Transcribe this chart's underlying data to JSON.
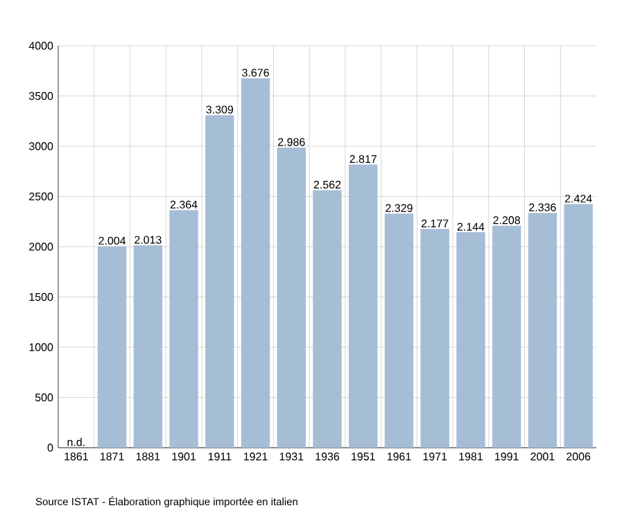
{
  "chart_data": {
    "type": "bar",
    "categories": [
      "1861",
      "1871",
      "1881",
      "1901",
      "1911",
      "1921",
      "1931",
      "1936",
      "1951",
      "1961",
      "1971",
      "1981",
      "1991",
      "2001",
      "2006"
    ],
    "values": [
      null,
      2004,
      2013,
      2364,
      3309,
      3676,
      2986,
      2562,
      2817,
      2329,
      2177,
      2144,
      2208,
      2336,
      2424
    ],
    "value_labels": [
      "n.d.",
      "2.004",
      "2.013",
      "2.364",
      "3.309",
      "3.676",
      "2.986",
      "2.562",
      "2.817",
      "2.329",
      "2.177",
      "2.144",
      "2.208",
      "2.336",
      "2.424"
    ],
    "color": "#a6bdd6",
    "ylim": [
      0,
      4000
    ],
    "yticks": [
      0,
      500,
      1000,
      1500,
      2000,
      2500,
      3000,
      3500,
      4000
    ],
    "grid": true,
    "annotations": [
      "Source ISTAT - Élaboration graphique importée en italien"
    ]
  }
}
